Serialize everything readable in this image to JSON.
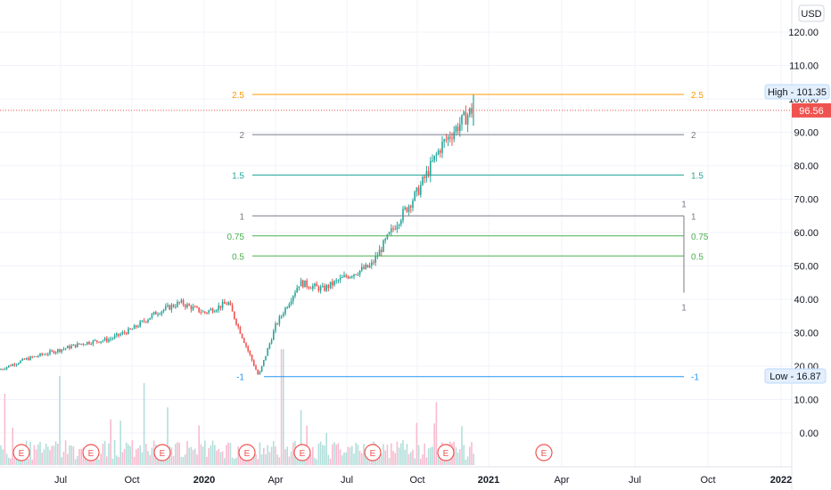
{
  "colors": {
    "up": "#26a69a",
    "down": "#ef5350",
    "grid": "#f0f3fa",
    "axis_text": "#131722",
    "lvl_25": "#ff9800",
    "lvl_2": "#787b86",
    "lvl_15": "#26a69a",
    "lvl_1": "#787b86",
    "lvl_075": "#4caf50",
    "lvl_05": "#4caf50",
    "lvl_m1": "#2196f3",
    "price_tag": "#ef5350",
    "vol_up": "#b2dfdb",
    "vol_down": "#f8bbd0",
    "earnings": "#ef5350"
  },
  "currency_label": "USD",
  "price_scale": [
    "120.00",
    "110.00",
    "100.00",
    "90.00",
    "80.00",
    "70.00",
    "60.00",
    "50.00",
    "40.00",
    "30.00",
    "20.00",
    "10.00",
    "0.00"
  ],
  "time_scale": [
    "Jul",
    "Oct",
    "2020",
    "Apr",
    "Jul",
    "Oct",
    "2021",
    "Apr",
    "Jul",
    "Oct",
    "2022"
  ],
  "current_price": "96.56",
  "high_label": "High - 101.35",
  "low_label": "Low - 16.87",
  "earnings_marker": "E",
  "fib_levels": [
    {
      "label": "2.5",
      "price": 101.35,
      "color_key": "lvl_25"
    },
    {
      "label": "2",
      "price": 89.3,
      "color_key": "lvl_2"
    },
    {
      "label": "1.5",
      "price": 77.2,
      "color_key": "lvl_15"
    },
    {
      "label": "1",
      "price": 65.0,
      "color_key": "lvl_1"
    },
    {
      "label": "0.75",
      "price": 59.0,
      "color_key": "lvl_075"
    },
    {
      "label": "0.5",
      "price": 53.0,
      "color_key": "lvl_05"
    },
    {
      "label": "-1",
      "price": 16.87,
      "color_key": "lvl_m1"
    }
  ],
  "trend_marker": {
    "label_top": "1",
    "label_bottom": "1",
    "top_price": 65.0,
    "bottom_price": 42.0
  },
  "chart_data": {
    "type": "candlestick",
    "y_axis": {
      "min": 0,
      "max": 120,
      "currency": "USD"
    },
    "x_axis_ticks": [
      "Jul",
      "Oct",
      "2020",
      "Apr",
      "Jul",
      "Oct",
      "2021",
      "Apr",
      "Jul",
      "Oct",
      "2022"
    ],
    "price_path": [
      {
        "t": "2019-05",
        "close": 19
      },
      {
        "t": "2019-06",
        "close": 22
      },
      {
        "t": "2019-07",
        "close": 25
      },
      {
        "t": "2019-08",
        "close": 27
      },
      {
        "t": "2019-09",
        "close": 28
      },
      {
        "t": "2019-10",
        "close": 31
      },
      {
        "t": "2019-11",
        "close": 36
      },
      {
        "t": "2019-12",
        "close": 39
      },
      {
        "t": "2020-01",
        "close": 36
      },
      {
        "t": "2020-02",
        "close": 39
      },
      {
        "t": "2020-03",
        "close": 17
      },
      {
        "t": "2020-04",
        "close": 32
      },
      {
        "t": "2020-05",
        "close": 45
      },
      {
        "t": "2020-06",
        "close": 43
      },
      {
        "t": "2020-07",
        "close": 47
      },
      {
        "t": "2020-08",
        "close": 50
      },
      {
        "t": "2020-09",
        "close": 63
      },
      {
        "t": "2020-10",
        "close": 72
      },
      {
        "t": "2020-11",
        "close": 86
      },
      {
        "t": "2020-12",
        "close": 97
      }
    ],
    "high": 101.35,
    "low": 16.87,
    "last": 96.56,
    "fibonacci_extension": {
      "2.5": 101.35,
      "2": 89.3,
      "1.5": 77.2,
      "1": 65.0,
      "0.75": 59.0,
      "0.5": 53.0,
      "-1": 16.87
    }
  }
}
